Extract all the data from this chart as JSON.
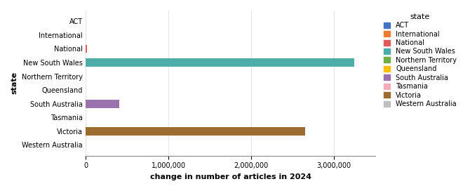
{
  "states": [
    "ACT",
    "International",
    "National",
    "New South Wales",
    "Northern Territory",
    "Queensland",
    "South Australia",
    "Tasmania",
    "Victoria",
    "Western Australia"
  ],
  "values": [
    0,
    0,
    15000,
    3250000,
    0,
    0,
    400000,
    0,
    2650000,
    0
  ],
  "colors": {
    "ACT": "#4472C4",
    "International": "#ED7D31",
    "National": "#E05A5A",
    "New South Wales": "#4DADA8",
    "Northern Territory": "#70AD47",
    "Queensland": "#FFC000",
    "South Australia": "#9B72AE",
    "Tasmania": "#F4ACBA",
    "Victoria": "#9C6B30",
    "Western Australia": "#BFBFBF"
  },
  "xlabel": "change in number of articles in 2024",
  "ylabel": "state",
  "xlim": [
    0,
    3500000
  ],
  "xticks": [
    0,
    1000000,
    2000000,
    3000000
  ],
  "xticklabels": [
    "0",
    "1,000,000",
    "2,000,000",
    "3,000,000"
  ],
  "bar_height": 0.6,
  "figure_bg": "#FFFFFF",
  "axes_bg": "#FFFFFF",
  "grid_color": "#E5E5E5"
}
